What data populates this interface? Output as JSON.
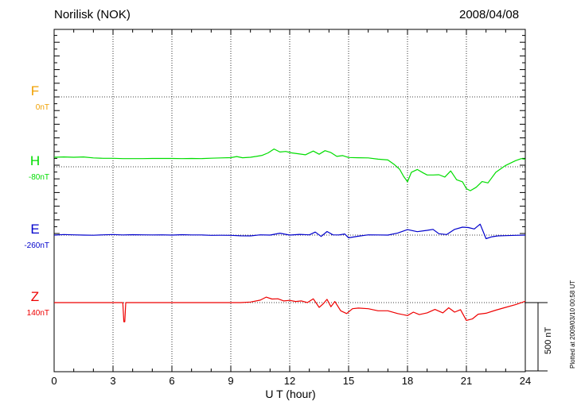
{
  "header": {
    "station": "Norilisk (NOK)",
    "date": "2008/04/08"
  },
  "footer": {
    "plotted_note": "Plotted at 2009/03/10 00:58 UT"
  },
  "chart_data": {
    "type": "line",
    "title": "Norilisk (NOK)",
    "subtitle": "2008/04/08",
    "xlabel": "U T (hour)",
    "ylabel": "",
    "xlim": [
      0,
      24
    ],
    "xticks": [
      "0",
      "3",
      "6",
      "9",
      "12",
      "15",
      "18",
      "21",
      "24"
    ],
    "scale_bar": {
      "label": "500 nT",
      "nT": 500
    },
    "grid": true,
    "series": [
      {
        "name": "F",
        "baseline_label": "0nT",
        "color": "#f0a000",
        "x": [],
        "values": []
      },
      {
        "name": "H",
        "baseline_label": "-80nT",
        "color": "#00dd00",
        "x": [
          0,
          0.5,
          1,
          1.5,
          2,
          2.5,
          3,
          3.5,
          4,
          4.5,
          5,
          5.5,
          6,
          6.5,
          7,
          7.5,
          8,
          8.5,
          9,
          9.3,
          9.6,
          10,
          10.3,
          10.6,
          10.9,
          11.2,
          11.5,
          11.8,
          12.1,
          12.4,
          12.8,
          13.2,
          13.5,
          13.8,
          14.1,
          14.4,
          14.7,
          15,
          15.5,
          16,
          16.5,
          17,
          17.3,
          17.6,
          17.8,
          18,
          18.2,
          18.5,
          18.8,
          19,
          19.3,
          19.6,
          19.9,
          20.2,
          20.5,
          20.8,
          21,
          21.2,
          21.5,
          21.8,
          22.1,
          22.5,
          23,
          23.5,
          23.8,
          24
        ],
        "values": [
          70,
          72,
          70,
          72,
          65,
          62,
          62,
          60,
          60,
          60,
          61,
          61,
          61,
          60,
          61,
          60,
          63,
          65,
          67,
          75,
          66,
          70,
          76,
          84,
          102,
          130,
          108,
          112,
          102,
          96,
          88,
          115,
          92,
          118,
          104,
          76,
          82,
          68,
          66,
          65,
          56,
          50,
          20,
          -18,
          -70,
          -110,
          -40,
          -20,
          -45,
          -60,
          -60,
          -58,
          -75,
          -30,
          -95,
          -110,
          -160,
          -175,
          -150,
          -108,
          -118,
          -40,
          10,
          45,
          60,
          55
        ]
      },
      {
        "name": "E",
        "baseline_label": "-260nT",
        "color": "#0000cc",
        "x": [
          0,
          0.5,
          1,
          1.5,
          2,
          2.5,
          3,
          3.5,
          4,
          4.5,
          5,
          5.5,
          6,
          6.5,
          7,
          7.5,
          8,
          8.5,
          9,
          9.5,
          10,
          10.5,
          11,
          11.5,
          12,
          12.5,
          13,
          13.3,
          13.6,
          13.9,
          14.2,
          14.5,
          14.8,
          15,
          15.5,
          16,
          16.5,
          17,
          17.5,
          18,
          18.5,
          19,
          19.3,
          19.6,
          20,
          20.4,
          20.8,
          21.1,
          21.4,
          21.7,
          22,
          22.3,
          22.6,
          23,
          23.5,
          24
        ],
        "values": [
          0,
          4,
          2,
          0,
          -1,
          2,
          4,
          1,
          3,
          2,
          1,
          2,
          0,
          3,
          1,
          1,
          -2,
          -1,
          -2,
          -5,
          -6,
          2,
          0,
          14,
          0,
          5,
          2,
          22,
          -10,
          26,
          2,
          1,
          8,
          -20,
          -8,
          2,
          1,
          0,
          15,
          40,
          25,
          35,
          42,
          10,
          4,
          42,
          58,
          55,
          45,
          80,
          -26,
          -12,
          -6,
          -4,
          -2,
          0
        ]
      },
      {
        "name": "Z",
        "baseline_label": "140nT",
        "color": "#ee0000",
        "x": [
          0,
          1,
          2,
          3,
          3.5,
          3.55,
          3.6,
          3.65,
          4,
          5,
          6,
          7,
          8,
          9,
          9.5,
          10,
          10.5,
          10.8,
          11.1,
          11.4,
          11.7,
          12,
          12.3,
          12.6,
          12.9,
          13.2,
          13.5,
          13.7,
          13.9,
          14.1,
          14.3,
          14.6,
          14.9,
          15.2,
          15.5,
          16,
          16.5,
          17,
          17.5,
          18,
          18.3,
          18.6,
          19,
          19.4,
          19.8,
          20.1,
          20.4,
          20.7,
          21,
          21.3,
          21.6,
          22,
          22.5,
          23,
          23.5,
          24
        ],
        "values": [
          0,
          0,
          0,
          0,
          0,
          -140,
          -140,
          0,
          0,
          0,
          0,
          0,
          0,
          0,
          0,
          4,
          18,
          40,
          26,
          28,
          12,
          16,
          8,
          12,
          0,
          28,
          -35,
          -10,
          24,
          -30,
          8,
          -60,
          -80,
          -45,
          -40,
          -45,
          -60,
          -60,
          -80,
          -95,
          -70,
          -88,
          -75,
          -50,
          -75,
          -38,
          -70,
          -52,
          -130,
          -120,
          -85,
          -78,
          -55,
          -35,
          -15,
          10
        ]
      }
    ]
  }
}
